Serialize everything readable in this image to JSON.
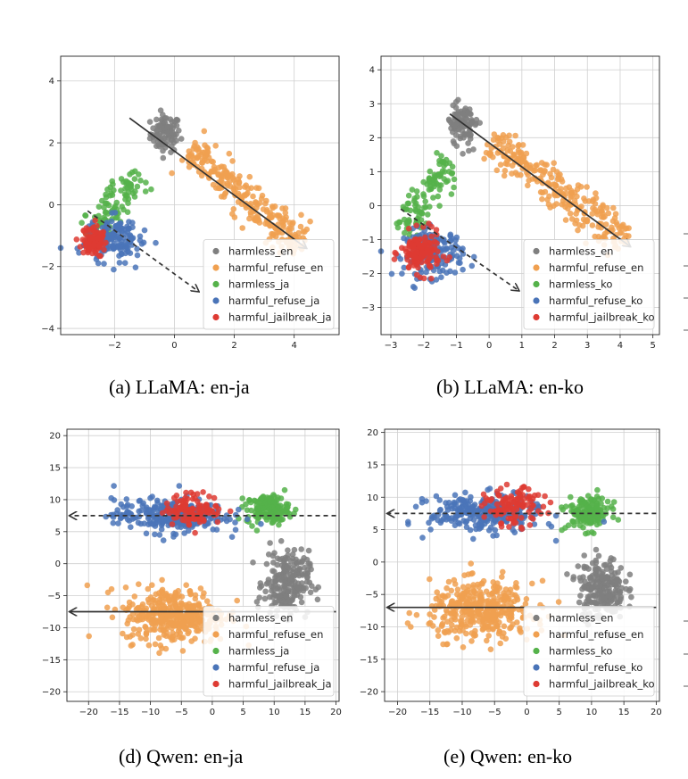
{
  "figure_captions": [
    "(a) LLaMA: en-ja",
    "(b) LLaMA: en-ko",
    "(d) Qwen: en-ja",
    "(e) Qwen: en-ko"
  ],
  "colors": {
    "harmless_en": "#7f7f7f",
    "harmful_refuse_en": "#f0a050",
    "harmless_lang": "#55b24a",
    "harmful_refuse_lang": "#4a74b8",
    "harmful_jailbreak_lang": "#de3b33"
  },
  "chart_data": [
    {
      "type": "scatter",
      "title": "(a) LLaMA: en-ja",
      "xlim": [
        -3.8,
        5.5
      ],
      "ylim": [
        -4.2,
        4.8
      ],
      "xticks": [
        -2,
        0,
        2,
        4
      ],
      "yticks": [
        -4,
        -2,
        0,
        2,
        4
      ],
      "legend_position": "lower-right",
      "grid": true,
      "series": [
        {
          "name": "harmless_en",
          "color": "#7f7f7f",
          "count": 90,
          "center": [
            -0.3,
            2.3
          ],
          "spread": [
            0.25,
            0.3
          ],
          "shape": "blob"
        },
        {
          "name": "harmful_refuse_en",
          "color": "#f0a050",
          "count": 260,
          "from": [
            0.5,
            1.8
          ],
          "to": [
            4.3,
            -1.4
          ],
          "spread": 0.28,
          "shape": "band"
        },
        {
          "name": "harmless_ja",
          "color": "#55b24a",
          "count": 110,
          "from": [
            -2.8,
            -1.1
          ],
          "to": [
            -1.2,
            1.0
          ],
          "spread": 0.25,
          "shape": "band"
        },
        {
          "name": "harmful_refuse_ja",
          "color": "#4a74b8",
          "count": 170,
          "center": [
            -2.1,
            -1.1
          ],
          "spread": [
            0.45,
            0.35
          ],
          "shape": "blob"
        },
        {
          "name": "harmful_jailbreak_ja",
          "color": "#de3b33",
          "count": 130,
          "center": [
            -2.7,
            -1.2
          ],
          "spread": [
            0.2,
            0.22
          ],
          "shape": "blob"
        }
      ],
      "arrows": [
        {
          "style": "solid",
          "from": [
            -1.5,
            2.8
          ],
          "to": [
            4.4,
            -1.4
          ]
        },
        {
          "style": "dashed",
          "from": [
            -2.9,
            -0.2
          ],
          "to": [
            0.8,
            -2.8
          ]
        }
      ]
    },
    {
      "type": "scatter",
      "title": "(b) LLaMA: en-ko",
      "xlim": [
        -3.3,
        5.2
      ],
      "ylim": [
        -3.8,
        4.4
      ],
      "xticks": [
        -3,
        -2,
        -1,
        0,
        1,
        2,
        3,
        4,
        5
      ],
      "yticks": [
        -3,
        -2,
        -1,
        0,
        1,
        2,
        3,
        4
      ],
      "legend_position": "lower-right",
      "grid": true,
      "series": [
        {
          "name": "harmless_en",
          "color": "#7f7f7f",
          "count": 90,
          "center": [
            -0.8,
            2.4
          ],
          "spread": [
            0.22,
            0.3
          ],
          "shape": "blob"
        },
        {
          "name": "harmful_refuse_en",
          "color": "#f0a050",
          "count": 260,
          "from": [
            0.0,
            1.9
          ],
          "to": [
            4.2,
            -1.1
          ],
          "spread": 0.28,
          "shape": "band"
        },
        {
          "name": "harmless_ko",
          "color": "#55b24a",
          "count": 110,
          "from": [
            -2.6,
            -0.8
          ],
          "to": [
            -1.2,
            1.3
          ],
          "spread": 0.22,
          "shape": "band"
        },
        {
          "name": "harmful_refuse_ko",
          "color": "#4a74b8",
          "count": 170,
          "center": [
            -1.7,
            -1.4
          ],
          "spread": [
            0.45,
            0.35
          ],
          "shape": "blob"
        },
        {
          "name": "harmful_jailbreak_ko",
          "color": "#de3b33",
          "count": 140,
          "center": [
            -2.1,
            -1.4
          ],
          "spread": [
            0.3,
            0.3
          ],
          "shape": "blob"
        }
      ],
      "arrows": [
        {
          "style": "solid",
          "from": [
            -1.2,
            2.7
          ],
          "to": [
            4.3,
            -1.2
          ]
        },
        {
          "style": "dashed",
          "from": [
            -2.7,
            -0.1
          ],
          "to": [
            0.9,
            -2.5
          ]
        }
      ]
    },
    {
      "type": "scatter",
      "title": "(d) Qwen: en-ja",
      "xlim": [
        -23.5,
        20.5
      ],
      "ylim": [
        -21.5,
        21
      ],
      "xticks": [
        -20,
        -15,
        -10,
        -5,
        0,
        5,
        10,
        15,
        20
      ],
      "yticks": [
        -20,
        -15,
        -10,
        -5,
        0,
        5,
        10,
        15,
        20
      ],
      "legend_position": "lower-right",
      "grid": true,
      "series": [
        {
          "name": "harmless_en",
          "color": "#7f7f7f",
          "count": 220,
          "center": [
            12,
            -3
          ],
          "spread": [
            1.8,
            2.5
          ],
          "shape": "blob"
        },
        {
          "name": "harmful_refuse_en",
          "color": "#f0a050",
          "count": 380,
          "center": [
            -6,
            -8
          ],
          "spread": [
            4.2,
            2.2
          ],
          "shape": "blob"
        },
        {
          "name": "harmless_ja",
          "color": "#55b24a",
          "count": 150,
          "center": [
            9,
            8.5
          ],
          "spread": [
            1.7,
            1.1
          ],
          "shape": "blob"
        },
        {
          "name": "harmful_refuse_ja",
          "color": "#4a74b8",
          "count": 280,
          "center": [
            -7,
            7.5
          ],
          "spread": [
            4.5,
            1.3
          ],
          "shape": "blob"
        },
        {
          "name": "harmful_jailbreak_ja",
          "color": "#de3b33",
          "count": 110,
          "center": [
            -3,
            8.5
          ],
          "spread": [
            2.3,
            1.2
          ],
          "shape": "blob"
        }
      ],
      "arrows": [
        {
          "style": "dashed",
          "from": [
            20,
            7.5
          ],
          "to": [
            -23,
            7.5
          ]
        },
        {
          "style": "solid",
          "from": [
            20,
            -7.5
          ],
          "to": [
            -23,
            -7.5
          ]
        }
      ]
    },
    {
      "type": "scatter",
      "title": "(e) Qwen: en-ko",
      "xlim": [
        -22,
        20.5
      ],
      "ylim": [
        -21.5,
        20.5
      ],
      "xticks": [
        -20,
        -15,
        -10,
        -5,
        0,
        5,
        10,
        15,
        20
      ],
      "yticks": [
        -20,
        -15,
        -10,
        -5,
        0,
        5,
        10,
        15,
        20
      ],
      "legend_position": "lower-right",
      "grid": true,
      "series": [
        {
          "name": "harmless_en",
          "color": "#7f7f7f",
          "count": 220,
          "center": [
            11.5,
            -4
          ],
          "spread": [
            1.8,
            2.4
          ],
          "shape": "blob"
        },
        {
          "name": "harmful_refuse_en",
          "color": "#f0a050",
          "count": 380,
          "center": [
            -7,
            -7.5
          ],
          "spread": [
            4.0,
            2.2
          ],
          "shape": "blob"
        },
        {
          "name": "harmless_ko",
          "color": "#55b24a",
          "count": 150,
          "center": [
            9.5,
            7.5
          ],
          "spread": [
            1.7,
            1.3
          ],
          "shape": "blob"
        },
        {
          "name": "harmful_refuse_ko",
          "color": "#4a74b8",
          "count": 280,
          "center": [
            -6.5,
            7.5
          ],
          "spread": [
            4.3,
            1.4
          ],
          "shape": "blob"
        },
        {
          "name": "harmful_jailbreak_ko",
          "color": "#de3b33",
          "count": 110,
          "center": [
            -2,
            8.5
          ],
          "spread": [
            2.2,
            1.4
          ],
          "shape": "blob"
        }
      ],
      "arrows": [
        {
          "style": "dashed",
          "from": [
            20,
            7.5
          ],
          "to": [
            -21.5,
            7.5
          ]
        },
        {
          "style": "solid",
          "from": [
            20,
            -7
          ],
          "to": [
            -21.5,
            -7
          ]
        }
      ]
    }
  ]
}
